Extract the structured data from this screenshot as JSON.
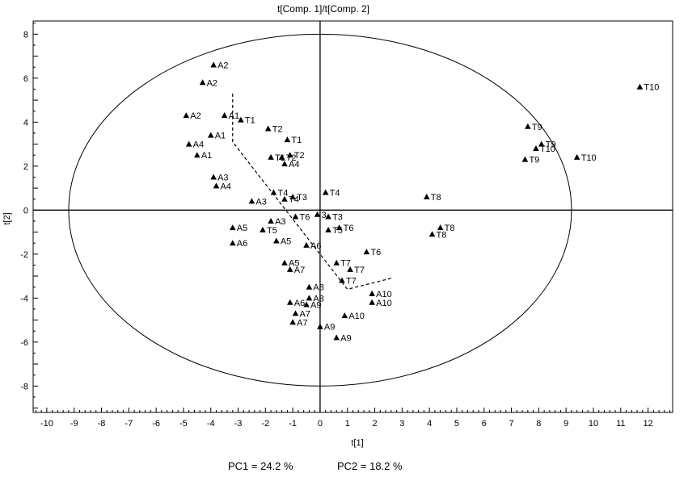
{
  "chart_data": {
    "type": "scatter",
    "title": "t[Comp. 1]/t[Comp. 2]",
    "xlabel": "t[1]",
    "ylabel": "t[2]",
    "xlim": [
      -10.5,
      12.9
    ],
    "ylim": [
      -9.2,
      8.6
    ],
    "xticks": [
      -10,
      -9,
      -8,
      -7,
      -6,
      -5,
      -4,
      -3,
      -2,
      -1,
      0,
      1,
      2,
      3,
      4,
      5,
      6,
      7,
      8,
      9,
      10,
      11,
      12
    ],
    "yticks": [
      -8,
      -6,
      -4,
      -2,
      0,
      2,
      4,
      6,
      8
    ],
    "marker": "triangle",
    "marker_color": "#000000",
    "ellipse": {
      "center": [
        0,
        0
      ],
      "rx": 9.2,
      "ry": 8.0
    },
    "trajectory": [
      [
        -3.2,
        5.3
      ],
      [
        -3.2,
        3.1
      ],
      [
        1.0,
        -3.6
      ],
      [
        2.6,
        -3.1
      ]
    ],
    "grid": false,
    "points": [
      {
        "label": "A2",
        "x": -3.9,
        "y": 6.6
      },
      {
        "label": "A2",
        "x": -4.3,
        "y": 5.8
      },
      {
        "label": "A2",
        "x": -4.9,
        "y": 4.3
      },
      {
        "label": "A1",
        "x": -3.5,
        "y": 4.3
      },
      {
        "label": "T1",
        "x": -2.9,
        "y": 4.1
      },
      {
        "label": "A1",
        "x": -4.0,
        "y": 3.4
      },
      {
        "label": "A4",
        "x": -4.8,
        "y": 3.0
      },
      {
        "label": "A1",
        "x": -4.5,
        "y": 2.5
      },
      {
        "label": "T2",
        "x": -1.9,
        "y": 3.7
      },
      {
        "label": "T1",
        "x": -1.2,
        "y": 3.2
      },
      {
        "label": "T1",
        "x": -1.8,
        "y": 2.4
      },
      {
        "label": "T2",
        "x": -1.4,
        "y": 2.4
      },
      {
        "label": "T2",
        "x": -1.1,
        "y": 2.5
      },
      {
        "label": "A4",
        "x": -1.3,
        "y": 2.1
      },
      {
        "label": "A3",
        "x": -3.9,
        "y": 1.5
      },
      {
        "label": "A4",
        "x": -3.8,
        "y": 1.1
      },
      {
        "label": "T4",
        "x": -1.7,
        "y": 0.8
      },
      {
        "label": "T3",
        "x": -1.0,
        "y": 0.6
      },
      {
        "label": "T4",
        "x": -1.3,
        "y": 0.5
      },
      {
        "label": "T4",
        "x": 0.2,
        "y": 0.8
      },
      {
        "label": "A3",
        "x": -2.5,
        "y": 0.4
      },
      {
        "label": "T6",
        "x": -0.9,
        "y": -0.3
      },
      {
        "label": "3",
        "x": -0.1,
        "y": -0.2
      },
      {
        "label": "T3",
        "x": 0.3,
        "y": -0.3
      },
      {
        "label": "A3",
        "x": -1.8,
        "y": -0.5
      },
      {
        "label": "T5",
        "x": -2.1,
        "y": -0.9
      },
      {
        "label": "A5",
        "x": -3.2,
        "y": -0.8
      },
      {
        "label": "T5",
        "x": 0.3,
        "y": -0.9
      },
      {
        "label": "T6",
        "x": 0.7,
        "y": -0.8
      },
      {
        "label": "A5",
        "x": -1.6,
        "y": -1.4
      },
      {
        "label": "A6",
        "x": -3.2,
        "y": -1.5
      },
      {
        "label": "A6",
        "x": -0.5,
        "y": -1.6
      },
      {
        "label": "T6",
        "x": 1.7,
        "y": -1.9
      },
      {
        "label": "A5",
        "x": -1.3,
        "y": -2.4
      },
      {
        "label": "T7",
        "x": 0.6,
        "y": -2.4
      },
      {
        "label": "A7",
        "x": -1.1,
        "y": -2.7
      },
      {
        "label": "T7",
        "x": 1.1,
        "y": -2.7
      },
      {
        "label": "T7",
        "x": 0.8,
        "y": -3.2
      },
      {
        "label": "A8",
        "x": -0.4,
        "y": -3.5
      },
      {
        "label": "A8",
        "x": -0.4,
        "y": -4.0
      },
      {
        "label": "A6",
        "x": -1.1,
        "y": -4.2
      },
      {
        "label": "A9",
        "x": -0.5,
        "y": -4.3
      },
      {
        "label": "A7",
        "x": -0.9,
        "y": -4.7
      },
      {
        "label": "A7",
        "x": -1.0,
        "y": -5.1
      },
      {
        "label": "A9",
        "x": 0.0,
        "y": -5.3
      },
      {
        "label": "A9",
        "x": 0.6,
        "y": -5.8
      },
      {
        "label": "A10",
        "x": 1.9,
        "y": -3.8
      },
      {
        "label": "A10",
        "x": 1.9,
        "y": -4.2
      },
      {
        "label": "A10",
        "x": 0.9,
        "y": -4.8
      },
      {
        "label": "T8",
        "x": 3.9,
        "y": 0.6
      },
      {
        "label": "T8",
        "x": 4.4,
        "y": -0.8
      },
      {
        "label": "T8",
        "x": 4.1,
        "y": -1.1
      },
      {
        "label": "T9",
        "x": 7.6,
        "y": 3.8
      },
      {
        "label": "T9",
        "x": 8.1,
        "y": 3.0
      },
      {
        "label": "T10",
        "x": 7.9,
        "y": 2.8
      },
      {
        "label": "T9",
        "x": 7.5,
        "y": 2.3
      },
      {
        "label": "T10",
        "x": 9.4,
        "y": 2.4
      },
      {
        "label": "T10",
        "x": 11.7,
        "y": 5.6
      }
    ]
  },
  "footer": {
    "pc1": "PC1 = 24.2 %",
    "pc2": "PC2 = 18.2 %"
  }
}
